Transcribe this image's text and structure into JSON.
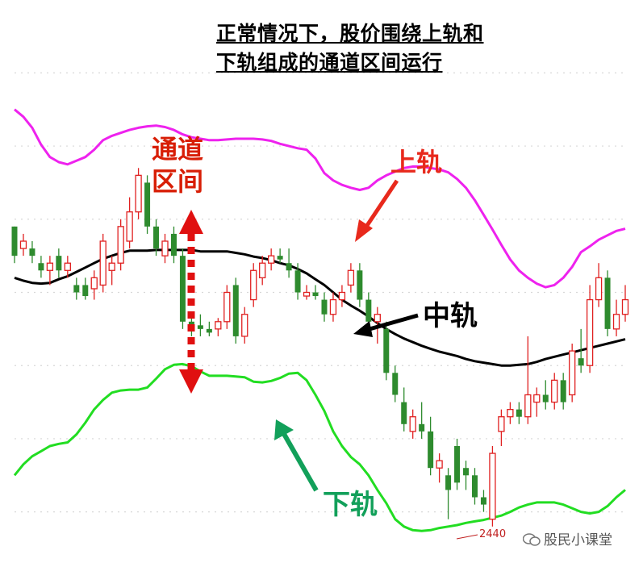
{
  "title_line1": "正常情况下，股价围绕上轨和",
  "title_line2": "下轨组成的通道区间运行",
  "annotations": {
    "channel_line1": "通道",
    "channel_line2": "区间",
    "upper": "上轨",
    "middle": "中轨",
    "lower": "下轨"
  },
  "price_label": "2440",
  "watermark": "股民小课堂",
  "colors": {
    "upper_band": "#ee22ee",
    "middle_band": "#000000",
    "lower_band": "#22dd22",
    "up_candle": "#e02020",
    "down_candle": "#2e8b2e",
    "channel_arrow": "#e01010",
    "upper_label": "#e8291c",
    "lower_label": "#12a05a",
    "grid": "#d8d8d8"
  },
  "chart_data": {
    "type": "candlestick",
    "indicator": "Bollinger Bands",
    "ylim": [
      2400,
      3100
    ],
    "grid": "horizontal dotted",
    "series": [
      {
        "name": "上轨",
        "values": [
          3000,
          2990,
          2975,
          2952,
          2935,
          2928,
          2925,
          2930,
          2935,
          2945,
          2958,
          2964,
          2968,
          2972,
          2975,
          2977,
          2978,
          2976,
          2972,
          2966,
          2962,
          2960,
          2958,
          2958,
          2959,
          2960,
          2960,
          2960,
          2959,
          2957,
          2953,
          2950,
          2947,
          2945,
          2933,
          2913,
          2903,
          2897,
          2893,
          2890,
          2893,
          2903,
          2910,
          2915,
          2920,
          2922,
          2922,
          2920,
          2918,
          2914,
          2905,
          2893,
          2876,
          2856,
          2836,
          2815,
          2795,
          2780,
          2770,
          2762,
          2757,
          2760,
          2770,
          2785,
          2805,
          2813,
          2822,
          2828,
          2834,
          2837
        ]
      },
      {
        "name": "中轨",
        "values": [
          2770,
          2766,
          2763,
          2762,
          2763,
          2768,
          2772,
          2778,
          2784,
          2790,
          2796,
          2800,
          2804,
          2807,
          2807,
          2807,
          2808,
          2808,
          2808,
          2808,
          2808,
          2806,
          2806,
          2806,
          2806,
          2804,
          2802,
          2799,
          2797,
          2794,
          2790,
          2787,
          2782,
          2776,
          2768,
          2760,
          2750,
          2740,
          2732,
          2725,
          2717,
          2708,
          2700,
          2693,
          2687,
          2682,
          2677,
          2673,
          2669,
          2666,
          2663,
          2659,
          2656,
          2654,
          2652,
          2650,
          2650,
          2651,
          2652,
          2655,
          2659,
          2662,
          2665,
          2668,
          2671,
          2674,
          2677,
          2680,
          2683,
          2686
        ]
      },
      {
        "name": "下轨",
        "values": [
          2500,
          2515,
          2526,
          2533,
          2540,
          2543,
          2545,
          2556,
          2572,
          2590,
          2603,
          2613,
          2616,
          2617,
          2617,
          2620,
          2632,
          2645,
          2651,
          2652,
          2649,
          2642,
          2636,
          2636,
          2636,
          2635,
          2634,
          2628,
          2627,
          2629,
          2633,
          2639,
          2640,
          2630,
          2610,
          2588,
          2560,
          2540,
          2525,
          2515,
          2500,
          2480,
          2462,
          2440,
          2430,
          2425,
          2424,
          2425,
          2428,
          2430,
          2432,
          2435,
          2437,
          2439,
          2442,
          2445,
          2450,
          2456,
          2460,
          2463,
          2463,
          2463,
          2460,
          2455,
          2450,
          2448,
          2450,
          2458,
          2470,
          2480
        ]
      },
      {
        "name": "K线 OHLC",
        "candles": [
          [
            2840,
            2840,
            2790,
            2800
          ],
          [
            2810,
            2830,
            2800,
            2820
          ],
          [
            2810,
            2820,
            2790,
            2800
          ],
          [
            2790,
            2800,
            2770,
            2780
          ],
          [
            2780,
            2800,
            2760,
            2790
          ],
          [
            2800,
            2810,
            2770,
            2780
          ],
          [
            2780,
            2800,
            2770,
            2790
          ],
          [
            2760,
            2770,
            2740,
            2750
          ],
          [
            2760,
            2770,
            2740,
            2745
          ],
          [
            2755,
            2780,
            2740,
            2770
          ],
          [
            2760,
            2830,
            2750,
            2820
          ],
          [
            2780,
            2800,
            2760,
            2790
          ],
          [
            2790,
            2850,
            2780,
            2840
          ],
          [
            2820,
            2880,
            2810,
            2860
          ],
          [
            2860,
            2920,
            2850,
            2910
          ],
          [
            2900,
            2910,
            2830,
            2840
          ],
          [
            2840,
            2850,
            2800,
            2810
          ],
          [
            2800,
            2830,
            2790,
            2820
          ],
          [
            2830,
            2840,
            2790,
            2800
          ],
          [
            2800,
            2810,
            2700,
            2710
          ],
          [
            2710,
            2720,
            2690,
            2700
          ],
          [
            2705,
            2720,
            2690,
            2700
          ],
          [
            2700,
            2710,
            2690,
            2695
          ],
          [
            2700,
            2715,
            2690,
            2710
          ],
          [
            2710,
            2760,
            2700,
            2750
          ],
          [
            2760,
            2770,
            2680,
            2690
          ],
          [
            2690,
            2730,
            2680,
            2720
          ],
          [
            2740,
            2790,
            2730,
            2780
          ],
          [
            2770,
            2800,
            2760,
            2790
          ],
          [
            2790,
            2810,
            2780,
            2800
          ],
          [
            2800,
            2810,
            2790,
            2795
          ],
          [
            2790,
            2810,
            2770,
            2780
          ],
          [
            2780,
            2790,
            2740,
            2750
          ],
          [
            2745,
            2760,
            2740,
            2750
          ],
          [
            2750,
            2760,
            2740,
            2745
          ],
          [
            2740,
            2750,
            2710,
            2720
          ],
          [
            2720,
            2750,
            2710,
            2740
          ],
          [
            2740,
            2760,
            2730,
            2750
          ],
          [
            2760,
            2790,
            2750,
            2780
          ],
          [
            2780,
            2790,
            2730,
            2740
          ],
          [
            2740,
            2750,
            2700,
            2710
          ],
          [
            2710,
            2730,
            2680,
            2720
          ],
          [
            2700,
            2710,
            2630,
            2640
          ],
          [
            2640,
            2650,
            2600,
            2610
          ],
          [
            2600,
            2620,
            2560,
            2570
          ],
          [
            2560,
            2590,
            2550,
            2580
          ],
          [
            2570,
            2600,
            2550,
            2560
          ],
          [
            2560,
            2580,
            2500,
            2510
          ],
          [
            2510,
            2530,
            2490,
            2520
          ],
          [
            2500,
            2510,
            2440,
            2480
          ],
          [
            2540,
            2550,
            2480,
            2490
          ],
          [
            2510,
            2520,
            2480,
            2500
          ],
          [
            2500,
            2510,
            2460,
            2470
          ],
          [
            2470,
            2480,
            2450,
            2460
          ],
          [
            2440,
            2540,
            2430,
            2530
          ],
          [
            2560,
            2590,
            2540,
            2580
          ],
          [
            2580,
            2600,
            2570,
            2590
          ],
          [
            2590,
            2600,
            2570,
            2580
          ],
          [
            2580,
            2690,
            2570,
            2610
          ],
          [
            2600,
            2620,
            2580,
            2610
          ],
          [
            2610,
            2630,
            2590,
            2600
          ],
          [
            2600,
            2640,
            2590,
            2630
          ],
          [
            2630,
            2640,
            2590,
            2600
          ],
          [
            2610,
            2680,
            2600,
            2670
          ],
          [
            2660,
            2700,
            2640,
            2650
          ],
          [
            2650,
            2760,
            2640,
            2740
          ],
          [
            2740,
            2790,
            2730,
            2770
          ],
          [
            2770,
            2780,
            2690,
            2700
          ],
          [
            2700,
            2740,
            2690,
            2720
          ],
          [
            2720,
            2760,
            2710,
            2740
          ]
        ]
      }
    ]
  }
}
